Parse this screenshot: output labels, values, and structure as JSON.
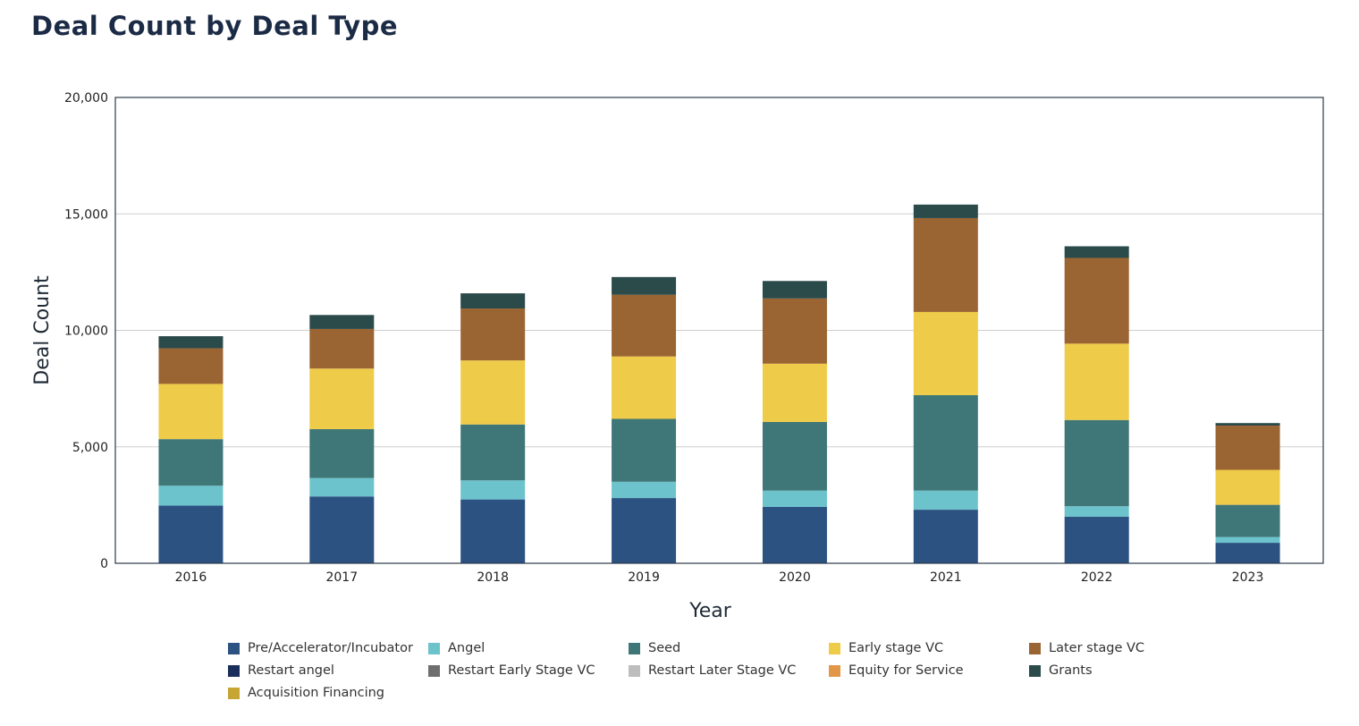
{
  "page": {
    "title": "Deal Count by Deal Type"
  },
  "chart_data": {
    "type": "bar",
    "stacked": true,
    "title": "Deal Count by Deal Type",
    "xlabel": "Year",
    "ylabel": "Deal Count",
    "ylim": [
      0,
      20000
    ],
    "yticks": [
      0,
      5000,
      10000,
      15000,
      20000
    ],
    "ytick_labels": [
      "0",
      "5,000",
      "10,000",
      "15,000",
      "20,000"
    ],
    "grid": "horizontal",
    "legend_position": "bottom",
    "categories": [
      "2016",
      "2017",
      "2018",
      "2019",
      "2020",
      "2021",
      "2022",
      "2023"
    ],
    "series": [
      {
        "name": "Pre/Accelerator/Incubator",
        "color": "#2c5282",
        "values": [
          2480,
          2870,
          2740,
          2800,
          2420,
          2300,
          2000,
          880
        ]
      },
      {
        "name": "Angel",
        "color": "#6cc3cc",
        "values": [
          850,
          790,
          820,
          700,
          700,
          820,
          450,
          250
        ]
      },
      {
        "name": "Seed",
        "color": "#3f7677",
        "values": [
          2000,
          2100,
          2400,
          2700,
          2950,
          4100,
          3700,
          1380
        ]
      },
      {
        "name": "Early stage VC",
        "color": "#eecb48",
        "values": [
          2370,
          2600,
          2750,
          2680,
          2500,
          3570,
          3280,
          1500
        ]
      },
      {
        "name": "Later stage VC",
        "color": "#9b6533",
        "values": [
          1530,
          1700,
          2230,
          2650,
          2800,
          4030,
          3680,
          1900
        ]
      },
      {
        "name": "Restart angel",
        "color": "#1a2e5c",
        "values": [
          0,
          0,
          0,
          0,
          0,
          0,
          0,
          0
        ]
      },
      {
        "name": "Restart Early Stage VC",
        "color": "#6e6e6e",
        "values": [
          0,
          0,
          0,
          0,
          0,
          0,
          0,
          0
        ]
      },
      {
        "name": "Restart Later Stage VC",
        "color": "#bdbdbd",
        "values": [
          0,
          0,
          0,
          0,
          0,
          0,
          0,
          0
        ]
      },
      {
        "name": "Equity for Service",
        "color": "#e29647",
        "values": [
          0,
          0,
          0,
          0,
          0,
          0,
          0,
          0
        ]
      },
      {
        "name": "Grants",
        "color": "#2b4a4a",
        "values": [
          520,
          600,
          650,
          760,
          750,
          580,
          500,
          110
        ]
      },
      {
        "name": "Acquisition Financing",
        "color": "#c6a534",
        "values": [
          0,
          0,
          0,
          0,
          0,
          0,
          0,
          0
        ]
      }
    ],
    "legend_order": [
      "Pre/Accelerator/Incubator",
      "Angel",
      "Seed",
      "Early stage VC",
      "Later stage VC",
      "Restart angel",
      "Restart Early Stage VC",
      "Restart Later Stage VC",
      "Equity for Service",
      "Grants",
      "Acquisition Financing"
    ]
  }
}
